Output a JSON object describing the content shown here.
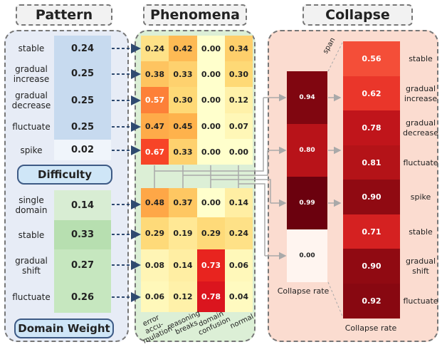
{
  "headers": {
    "pattern": "Pattern",
    "phenomena": "Phenomena",
    "collapse": "Collapse"
  },
  "difficulty": {
    "label": "Difficulty",
    "rows": [
      {
        "name": "stable",
        "value": "0.24"
      },
      {
        "name": "gradual\nincrease",
        "value": "0.25"
      },
      {
        "name": "gradual\ndecrease",
        "value": "0.25"
      },
      {
        "name": "fluctuate",
        "value": "0.25"
      },
      {
        "name": "spike",
        "value": "0.02"
      }
    ]
  },
  "domain_weight": {
    "label": "Domain Weight",
    "rows": [
      {
        "name": "single\ndomain",
        "value": "0.14"
      },
      {
        "name": "stable",
        "value": "0.33"
      },
      {
        "name": "gradual\nshift",
        "value": "0.27"
      },
      {
        "name": "fluctuate",
        "value": "0.26"
      }
    ]
  },
  "phenomena": {
    "columns": [
      "error accu-\nmulation",
      "reasoning\nbreaks",
      "domain\nconfusion",
      "normal"
    ],
    "difficulty_matrix": [
      [
        "0.24",
        "0.42",
        "0.00",
        "0.34"
      ],
      [
        "0.38",
        "0.33",
        "0.00",
        "0.30"
      ],
      [
        "0.57",
        "0.30",
        "0.00",
        "0.12"
      ],
      [
        "0.47",
        "0.45",
        "0.00",
        "0.07"
      ],
      [
        "0.67",
        "0.33",
        "0.00",
        "0.00"
      ]
    ],
    "domain_matrix": [
      [
        "0.48",
        "0.37",
        "0.00",
        "0.14"
      ],
      [
        "0.29",
        "0.19",
        "0.29",
        "0.24"
      ],
      [
        "0.08",
        "0.14",
        "0.73",
        "0.06"
      ],
      [
        "0.06",
        "0.12",
        "0.78",
        "0.04"
      ]
    ]
  },
  "collapse": {
    "span_label": "span",
    "phenomena_rates": [
      "0.94",
      "0.80",
      "0.99",
      "0.00"
    ],
    "phenomena_caption": "Collapse rate",
    "pattern_rows": [
      {
        "value": "0.56",
        "name": "stable"
      },
      {
        "value": "0.62",
        "name": "gradual\nincrease"
      },
      {
        "value": "0.78",
        "name": "gradual\ndecrease"
      },
      {
        "value": "0.81",
        "name": "fluctuate"
      },
      {
        "value": "0.90",
        "name": "spike"
      },
      {
        "value": "0.71",
        "name": "stable"
      },
      {
        "value": "0.90",
        "name": "gradual\nshift"
      },
      {
        "value": "0.92",
        "name": "fluctuate"
      }
    ],
    "pattern_caption": "Collapse rate"
  },
  "colors": {
    "left_panel_bg": "#e7ecf6",
    "mid_panel_bg": "#dcefd6",
    "right_panel_bg": "#fbdcd0",
    "arrow": "#2f4a70",
    "connector": "#a9a9a9"
  }
}
